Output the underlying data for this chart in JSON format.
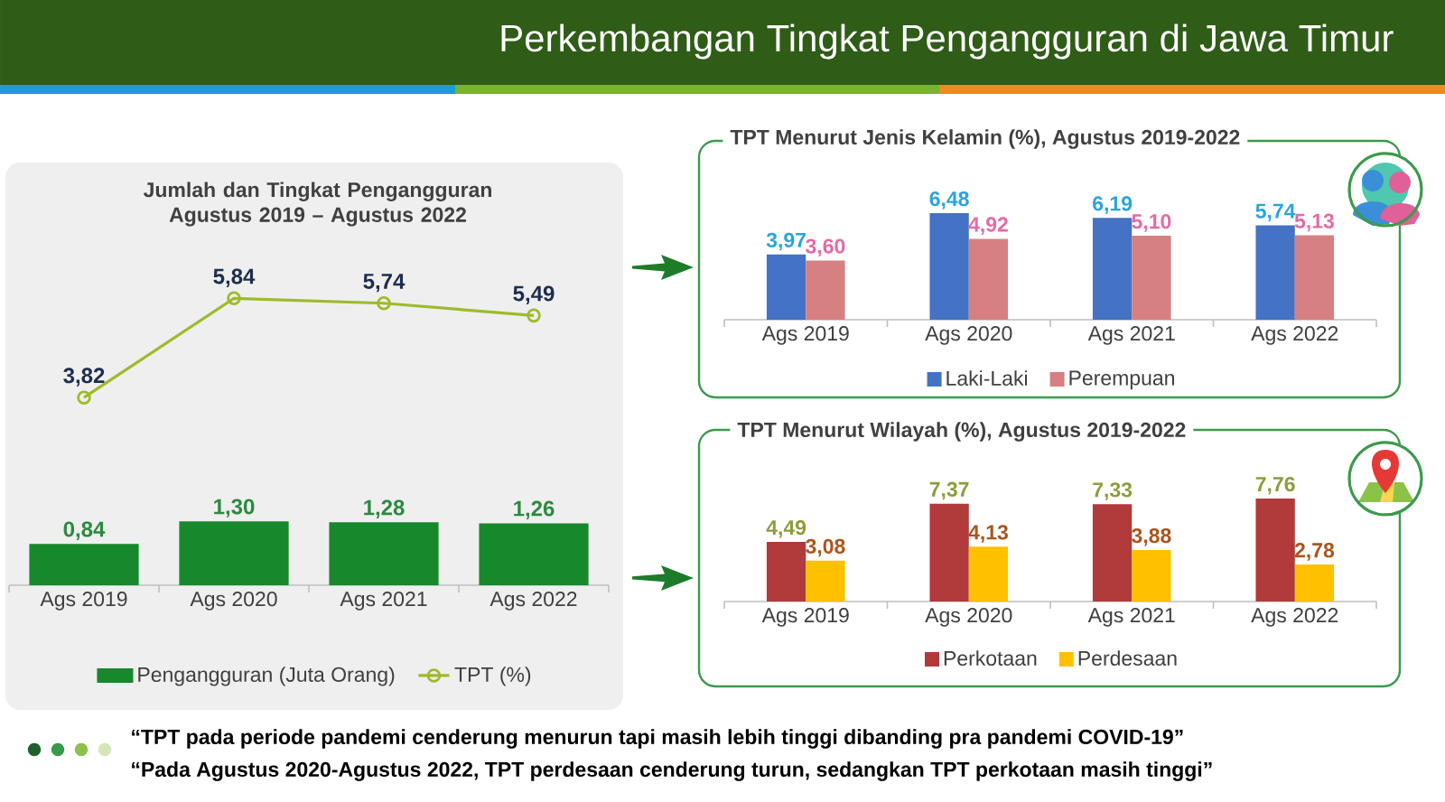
{
  "chart_data": [
    {
      "type": "other",
      "title": "Perkembangan Tingkat Pengangguran di Jawa Timur"
    },
    {
      "type": "bar",
      "title": "Jumlah dan Tingkat Pengangguran Agustus 2019 – Agustus 2022",
      "categories": [
        "Ags 2019",
        "Ags 2020",
        "Ags 2021",
        "Ags 2022"
      ],
      "series": [
        {
          "name": "Pengangguran (Juta Orang)",
          "type": "bar",
          "color": "#17882c",
          "values": [
            0.84,
            1.3,
            1.28,
            1.26
          ],
          "value_labels": [
            "0,84",
            "1,30",
            "1,28",
            "1,26"
          ]
        },
        {
          "name": "TPT (%)",
          "type": "line",
          "color": "#9dbb2a",
          "marker": "circle",
          "values": [
            3.82,
            5.84,
            5.74,
            5.49
          ],
          "value_labels": [
            "3,82",
            "5,84",
            "5,74",
            "5,49"
          ]
        }
      ],
      "legend": "bottom"
    },
    {
      "type": "bar",
      "title": "TPT Menurut Jenis Kelamin (%), Agustus 2019-2022",
      "categories": [
        "Ags 2019",
        "Ags 2020",
        "Ags 2021",
        "Ags 2022"
      ],
      "series": [
        {
          "name": "Laki-Laki",
          "color": "#4472c4",
          "values": [
            3.97,
            6.48,
            6.19,
            5.74
          ],
          "value_labels": [
            "3,97",
            "6,48",
            "6,19",
            "5,74"
          ]
        },
        {
          "name": "Perempuan",
          "color": "#d68082",
          "values": [
            3.6,
            4.92,
            5.1,
            5.13
          ],
          "value_labels": [
            "3,60",
            "4,92",
            "5,10",
            "5,13"
          ]
        }
      ],
      "legend": "bottom"
    },
    {
      "type": "bar",
      "title": "TPT Menurut Wilayah (%), Agustus 2019-2022",
      "categories": [
        "Ags 2019",
        "Ags 2020",
        "Ags 2021",
        "Ags 2022"
      ],
      "series": [
        {
          "name": "Perkotaan",
          "color": "#b13a3a",
          "values": [
            4.49,
            7.37,
            7.33,
            7.76
          ],
          "value_labels": [
            "4,49",
            "7,37",
            "7,33",
            "7,76"
          ]
        },
        {
          "name": "Perdesaan",
          "color": "#ffc000",
          "values": [
            3.08,
            4.13,
            3.88,
            2.78
          ],
          "value_labels": [
            "3,08",
            "4,13",
            "3,88",
            "2,78"
          ]
        }
      ],
      "legend": "bottom"
    },
    {
      "type": "other",
      "annotations": [
        "“TPT pada periode pandemi cenderung menurun tapi masih lebih tinggi dibanding pra pandemi COVID-19”",
        "“Pada Agustus 2020-Agustus 2022, TPT perdesaan cenderung turun, sedangkan TPT perkotaan masih tinggi”"
      ]
    }
  ]
}
